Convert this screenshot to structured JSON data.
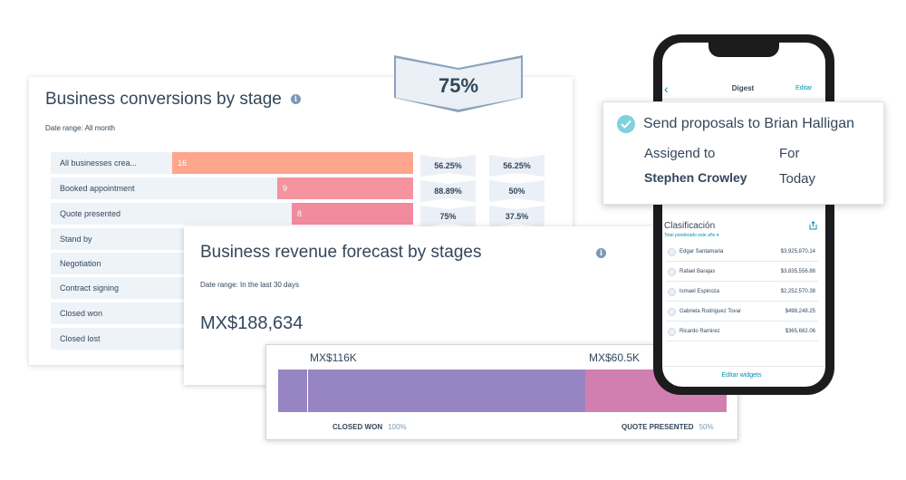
{
  "conversions": {
    "title": "Business conversions by stage",
    "date_range": "Date range: All month",
    "stages": [
      {
        "label": "All businesses crea...",
        "count": "16",
        "conversion": "56.25%",
        "cumulative": "56.25%",
        "color": "#fea58e"
      },
      {
        "label": "Booked appointment",
        "count": "9",
        "conversion": "88.89%",
        "cumulative": "50%",
        "color": "#f5939e"
      },
      {
        "label": "Quote presented",
        "count": "8",
        "conversion": "75%",
        "cumulative": "37.5%",
        "color": "#f28a9d"
      },
      {
        "label": "Stand by"
      },
      {
        "label": "Negotiation"
      },
      {
        "label": "Contract signing"
      },
      {
        "label": "Closed won"
      },
      {
        "label": "Closed lost"
      }
    ],
    "highlight": "75%"
  },
  "revenue": {
    "title": "Business revenue forecast by stages",
    "date_range": "Date range: In the last 30 days",
    "total": "MX$188,634",
    "segments": [
      {
        "amount": "MX$116K",
        "name": "CLOSED WON",
        "pct": "100%",
        "color": "#9784c2"
      },
      {
        "amount": "MX$60.5K",
        "name": "QUOTE PRESENTED",
        "pct": "50%",
        "color": "#d17fb1"
      }
    ]
  },
  "phone": {
    "nav": {
      "back": "‹",
      "title": "Digest",
      "edit": "Editar"
    },
    "ranking": {
      "title": "Clasificación",
      "subtitle": "Total ponderado este año ▾",
      "rows": [
        {
          "name": "Edgar Santamaria",
          "amount": "$3,925,870.14"
        },
        {
          "name": "Rafael Barajas",
          "amount": "$3,835,556.88"
        },
        {
          "name": "Ismael Espinoza",
          "amount": "$2,252,570.38"
        },
        {
          "name": "Gabriela Rodriguez Tovar",
          "amount": "$498,248.25"
        },
        {
          "name": "Ricardo Ramirez",
          "amount": "$365,682.06"
        }
      ]
    },
    "widgets_link": "Editar widgets"
  },
  "task": {
    "title": "Send proposals to Brian Halligan",
    "assigned_label": "Assigend to",
    "assignee": "Stephen Crowley",
    "for_label": "For",
    "due": "Today"
  },
  "colors": {
    "accent": "#0091ae",
    "text": "#33475b",
    "check": "#7fd1de"
  }
}
